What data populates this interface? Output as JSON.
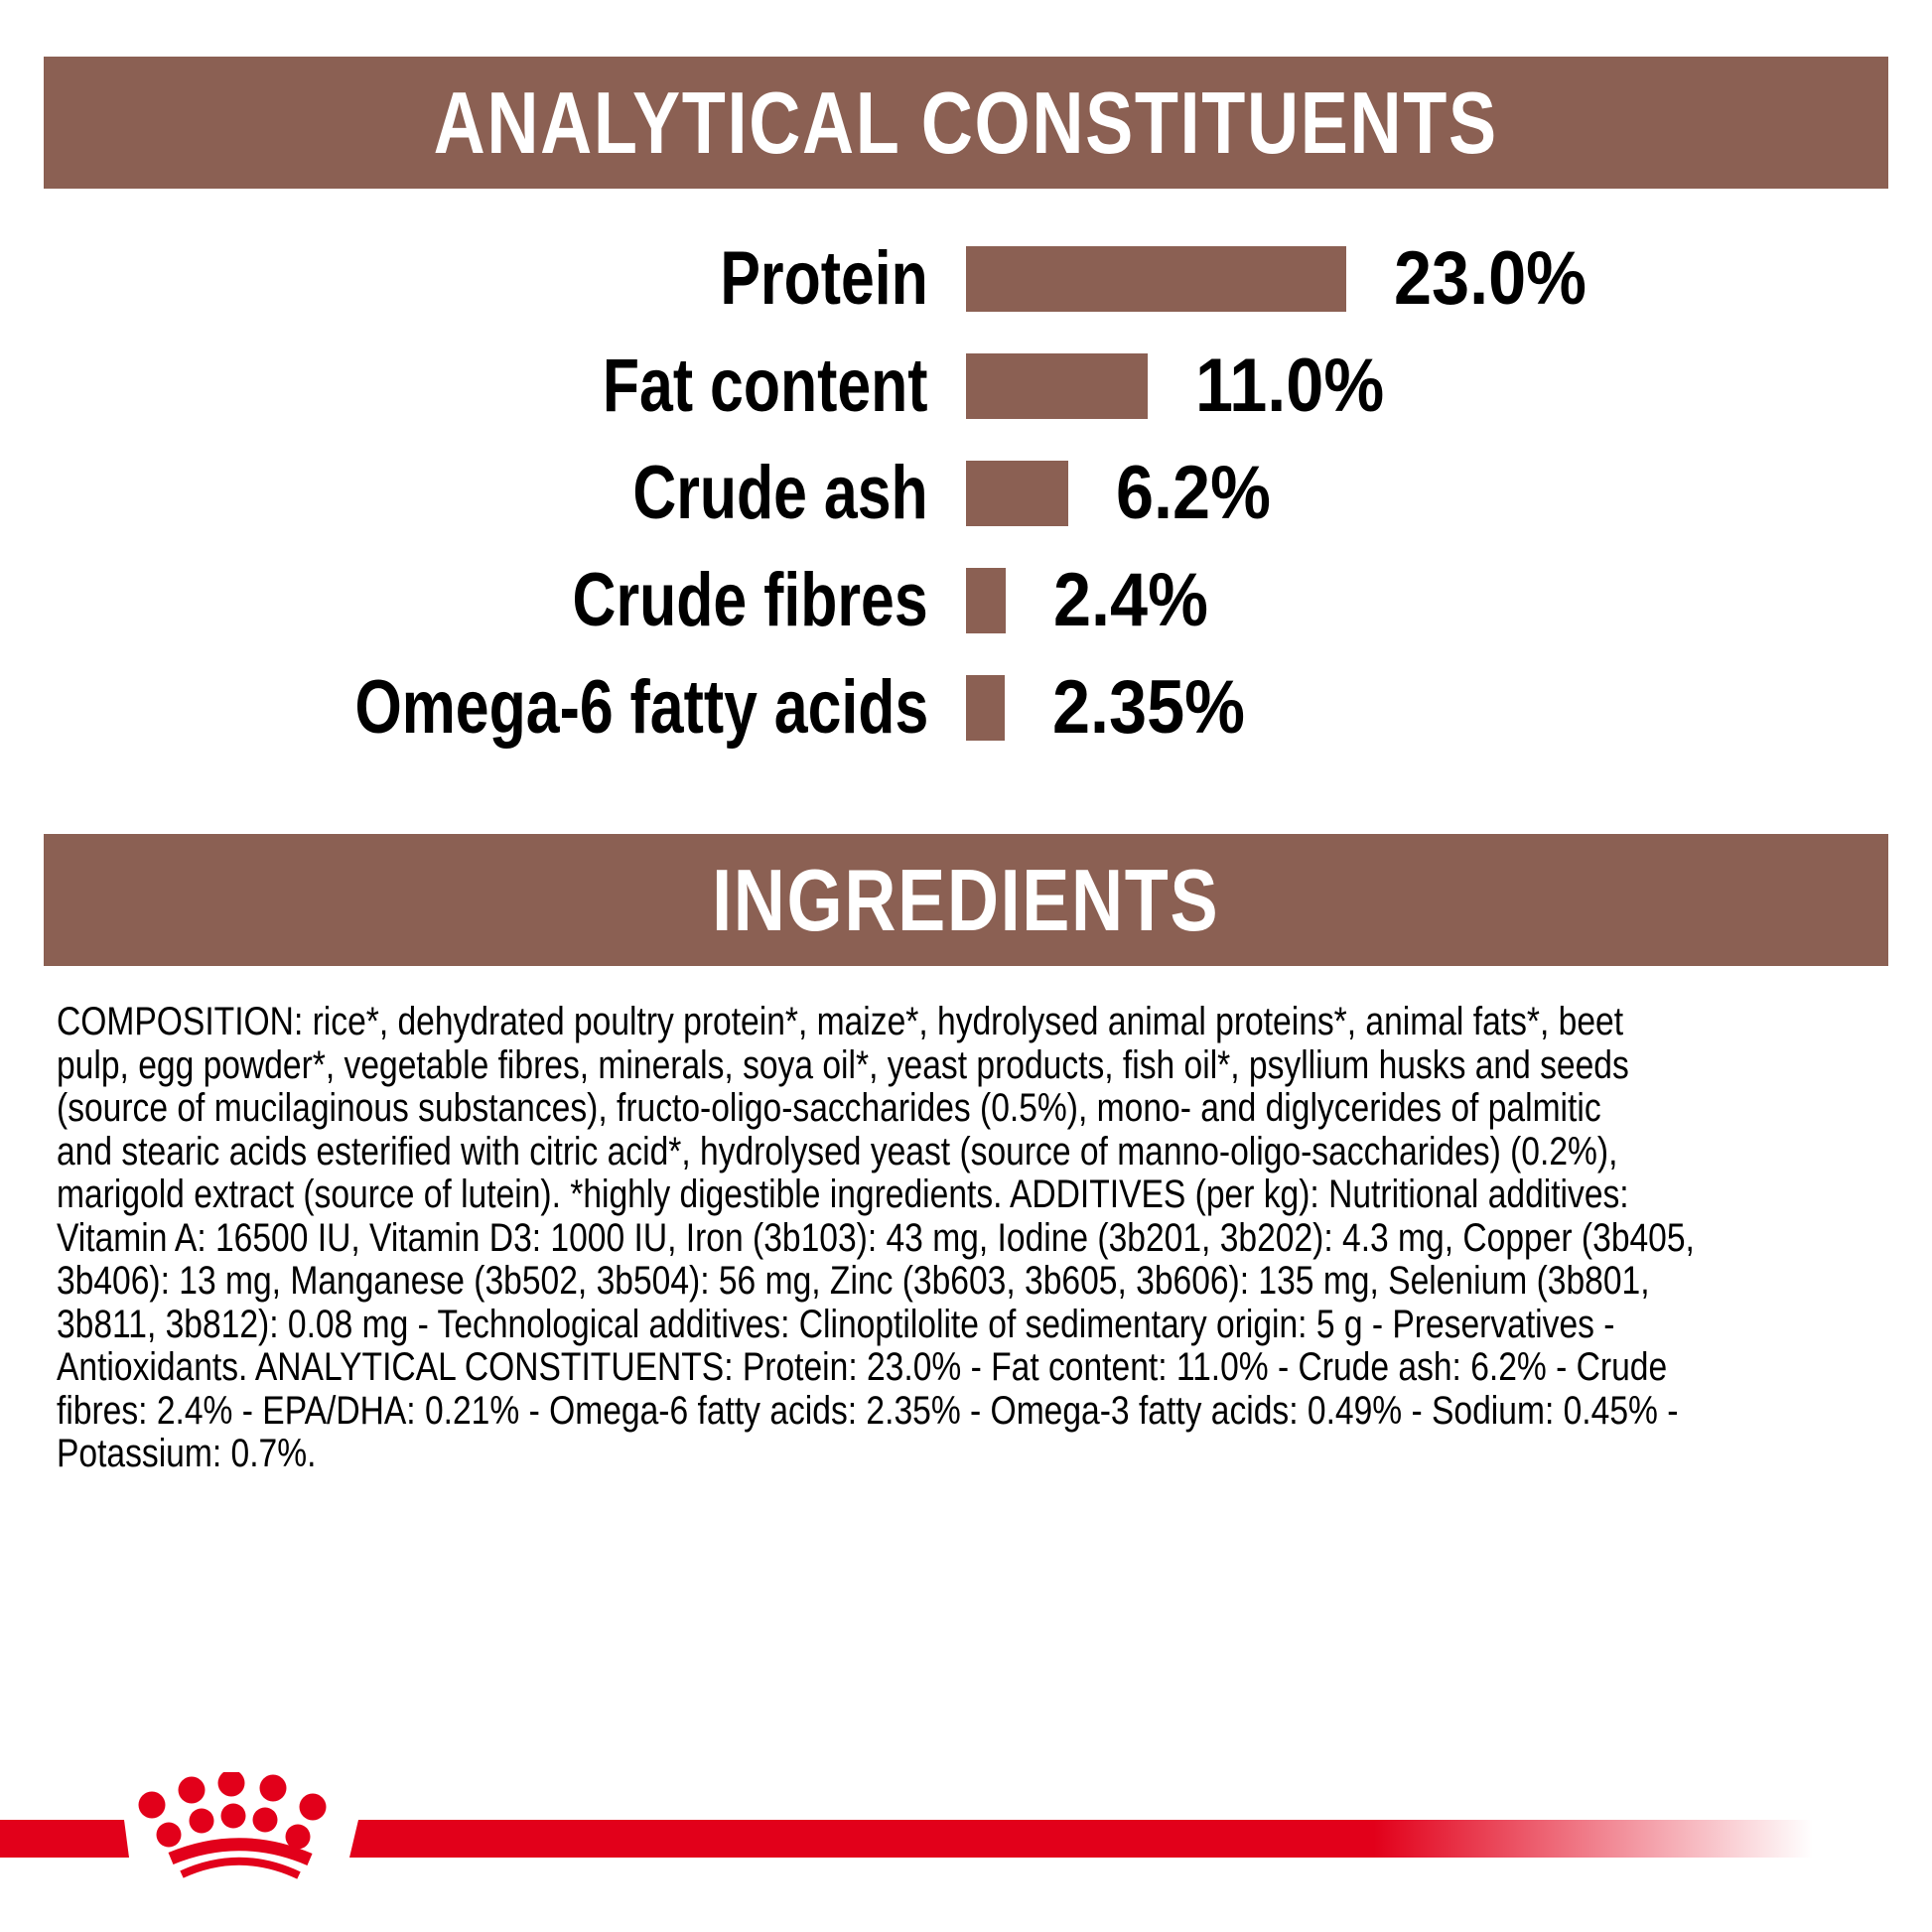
{
  "header_analytical": {
    "title": "ANALYTICAL CONSTITUENTS"
  },
  "header_ingredients": {
    "title": "INGREDIENTS"
  },
  "chart_data": {
    "type": "bar",
    "orientation": "horizontal",
    "title": "ANALYTICAL CONSTITUENTS",
    "categories": [
      "Protein",
      "Fat content",
      "Crude ash",
      "Crude fibres",
      "Omega-6 fatty acids"
    ],
    "values": [
      23.0,
      11.0,
      6.2,
      2.4,
      2.35
    ],
    "value_labels": [
      "23.0%",
      "11.0%",
      "6.2%",
      "2.4%",
      "2.35%"
    ],
    "unit": "%",
    "xlim": [
      0,
      23
    ],
    "grid": false,
    "bar_color": "#8b6053",
    "label_position": "left-of-bar",
    "value_position": "right-of-bar"
  },
  "ingredients": {
    "lines": [
      "COMPOSITION: rice*, dehydrated poultry protein*, maize*, hydrolysed animal proteins*, animal fats*, beet",
      "pulp, egg powder*, vegetable fibres, minerals, soya oil*, yeast products, fish oil*, psyllium husks and seeds",
      "(source of mucilaginous substances), fructo-oligo-saccharides (0.5%), mono- and diglycerides of palmitic",
      "and stearic acids esterified with citric acid*, hydrolysed yeast (source of manno-oligo-saccharides) (0.2%),",
      "marigold extract (source of lutein). *highly digestible ingredients. ADDITIVES (per kg): Nutritional additives:",
      "Vitamin A: 16500 IU, Vitamin D3: 1000 IU, Iron (3b103): 43 mg, Iodine (3b201, 3b202): 4.3 mg, Copper (3b405,",
      "3b406): 13 mg, Manganese (3b502, 3b504): 56 mg, Zinc (3b603, 3b605, 3b606): 135 mg, Selenium (3b801,",
      "3b811, 3b812): 0.08 mg - Technological additives: Clinoptilolite of sedimentary origin: 5 g - Preservatives -",
      "Antioxidants. ANALYTICAL CONSTITUENTS: Protein: 23.0% - Fat content: 11.0% - Crude ash: 6.2% - Crude",
      "fibres: 2.4% - EPA/DHA: 0.21% - Omega-6 fatty acids: 2.35% - Omega-3 fatty acids: 0.49% - Sodium: 0.45% -",
      "Potassium: 0.7%."
    ]
  },
  "footer": {
    "logo_icon": "royal-canin-crown",
    "accent_color": "#e2001a"
  },
  "colors": {
    "brown": "#8b6053",
    "red": "#e2001a",
    "header_text": "#ffffff",
    "body_text": "#000000",
    "background": "#ffffff"
  }
}
